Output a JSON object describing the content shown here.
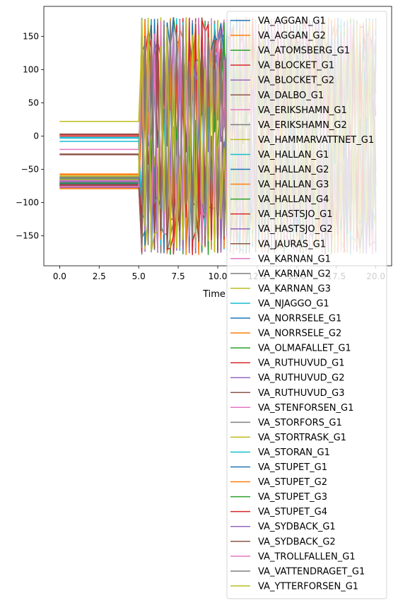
{
  "chart_data": {
    "type": "line",
    "title": "",
    "xlabel": "Time",
    "ylabel": "",
    "xlim": [
      -1.0,
      21.0
    ],
    "ylim": [
      -195,
      195
    ],
    "xticks": [
      0.0,
      2.5,
      5.0,
      7.5,
      10.0,
      12.5,
      15.0,
      17.5,
      20.0
    ],
    "xtick_labels": [
      "0.0",
      "2.5",
      "5.0",
      "7.5",
      "10.0",
      "12.5",
      "15.0",
      "17.5",
      "20.0"
    ],
    "yticks": [
      150,
      100,
      50,
      0,
      -50,
      -100,
      -150
    ],
    "ytick_labels": [
      "150",
      "100",
      "50",
      "0",
      "−50",
      "−100",
      "−150"
    ],
    "grid": false,
    "legend_position": "right, overflowing below the axes",
    "x": [
      0,
      5.0,
      5.2,
      5.4,
      5.6,
      5.8,
      6.0,
      6.2,
      6.4,
      6.6,
      6.8,
      7.0,
      7.2,
      7.4,
      7.6,
      7.8,
      8.0,
      8.2,
      8.4,
      8.6,
      8.8,
      9.0,
      9.2,
      9.4,
      9.6,
      9.8,
      10.0,
      10.2,
      10.4,
      10.6,
      10.8,
      11.0,
      11.2,
      11.4,
      11.6,
      11.8,
      12.0,
      12.2,
      12.4,
      12.6,
      12.8,
      13.0,
      13.2,
      13.4,
      13.6,
      13.8,
      14.0,
      14.2,
      14.4,
      14.6,
      14.8,
      15.0,
      15.2,
      15.4,
      15.6,
      15.8,
      16.0,
      16.2,
      16.4,
      16.6,
      16.8,
      17.0,
      17.2,
      17.4,
      17.6,
      17.8,
      18.0,
      18.2,
      18.4,
      18.6,
      18.8,
      19.0,
      19.2,
      19.4,
      19.6,
      19.8,
      20.0
    ],
    "series": [
      {
        "name": "VA_AGGAN_G1",
        "color": "#1f77b4",
        "initial": -70
      },
      {
        "name": "VA_AGGAN_G2",
        "color": "#ff7f0e",
        "initial": -58
      },
      {
        "name": "VA_ATOMSBERG_G1",
        "color": "#2ca02c",
        "initial": -73
      },
      {
        "name": "VA_BLOCKET_G1",
        "color": "#d62728",
        "initial": 2
      },
      {
        "name": "VA_BLOCKET_G2",
        "color": "#9467bd",
        "initial": -75
      },
      {
        "name": "VA_DALBO_G1",
        "color": "#8c564b",
        "initial": -28
      },
      {
        "name": "VA_ERIKSHAMN_G1",
        "color": "#e377c2",
        "initial": -20
      },
      {
        "name": "VA_ERIKSHAMN_G2",
        "color": "#7f7f7f",
        "initial": -66
      },
      {
        "name": "VA_HAMMARVATTNET_G1",
        "color": "#bcbd22",
        "initial": 22
      },
      {
        "name": "VA_HALLAN_G1",
        "color": "#17becf",
        "initial": -8
      },
      {
        "name": "VA_HALLAN_G2",
        "color": "#1f77b4",
        "initial": -64
      },
      {
        "name": "VA_HALLAN_G3",
        "color": "#ff7f0e",
        "initial": -78
      },
      {
        "name": "VA_HALLAN_G4",
        "color": "#2ca02c",
        "initial": -69
      },
      {
        "name": "VA_HASTSJO_G1",
        "color": "#d62728",
        "initial": 0
      },
      {
        "name": "VA_HASTSJO_G2",
        "color": "#9467bd",
        "initial": -72
      },
      {
        "name": "VA_JAURAS_G1",
        "color": "#8c564b",
        "initial": 3
      },
      {
        "name": "VA_KARNAN_G1",
        "color": "#e377c2",
        "initial": -76
      },
      {
        "name": "VA_KARNAN_G2",
        "color": "#7f7f7f",
        "initial": -68
      },
      {
        "name": "VA_KARNAN_G3",
        "color": "#bcbd22",
        "initial": -62
      },
      {
        "name": "VA_NJAGGO_G1",
        "color": "#17becf",
        "initial": -2
      },
      {
        "name": "VA_NORRSELE_G1",
        "color": "#1f77b4",
        "initial": -66
      },
      {
        "name": "VA_NORRSELE_G2",
        "color": "#ff7f0e",
        "initial": -57
      },
      {
        "name": "VA_OLMAFALLET_G1",
        "color": "#2ca02c",
        "initial": -71
      },
      {
        "name": "VA_RUTHUVUD_G1",
        "color": "#d62728",
        "initial": -74
      },
      {
        "name": "VA_RUTHUVUD_G2",
        "color": "#9467bd",
        "initial": -77
      },
      {
        "name": "VA_RUTHUVUD_G3",
        "color": "#8c564b",
        "initial": -27
      },
      {
        "name": "VA_STENFORSEN_G1",
        "color": "#e377c2",
        "initial": -67
      },
      {
        "name": "VA_STORFORS_G1",
        "color": "#7f7f7f",
        "initial": -63
      },
      {
        "name": "VA_STORTRASK_G1",
        "color": "#bcbd22",
        "initial": -65
      },
      {
        "name": "VA_STORAN_G1",
        "color": "#17becf",
        "initial": -3
      },
      {
        "name": "VA_STUPET_G1",
        "color": "#1f77b4",
        "initial": -72
      },
      {
        "name": "VA_STUPET_G2",
        "color": "#ff7f0e",
        "initial": -79
      },
      {
        "name": "VA_STUPET_G3",
        "color": "#2ca02c",
        "initial": -70
      },
      {
        "name": "VA_STUPET_G4",
        "color": "#d62728",
        "initial": -73
      },
      {
        "name": "VA_SYDBACK_G1",
        "color": "#9467bd",
        "initial": -69
      },
      {
        "name": "VA_SYDBACK_G2",
        "color": "#8c564b",
        "initial": -74
      },
      {
        "name": "VA_TROLLFALLEN_G1",
        "color": "#e377c2",
        "initial": -76
      },
      {
        "name": "VA_VATTENDRAGET_G1",
        "color": "#7f7f7f",
        "initial": -61
      },
      {
        "name": "VA_YTTERFORSEN_G1",
        "color": "#bcbd22",
        "initial": -60
      }
    ]
  }
}
